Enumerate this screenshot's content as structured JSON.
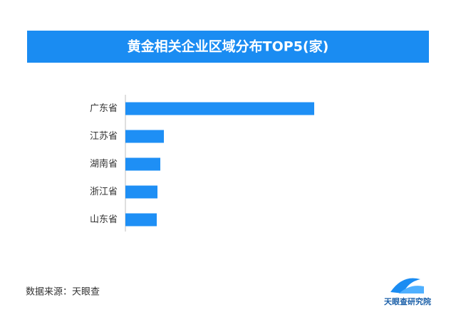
{
  "chart_data": {
    "type": "barh",
    "title": "黄金相关企业区域分布TOP5(家)",
    "categories": [
      "广东省",
      "江苏省",
      "湖南省",
      "浙江省",
      "山东省"
    ],
    "values": [
      265,
      54,
      49,
      45,
      44
    ],
    "color": "#1e8ff5"
  },
  "footer": {
    "source": "数据来源：天眼查",
    "logo": "天眼查研究院"
  }
}
